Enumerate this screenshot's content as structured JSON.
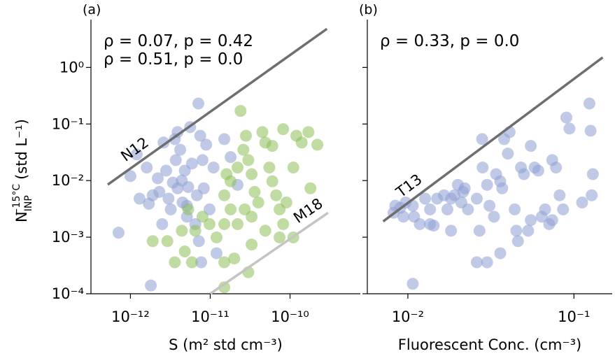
{
  "chart_data": [
    {
      "type": "scatter",
      "panel_label": "(a)",
      "xscale": "log",
      "yscale": "log",
      "x_label": "S (m² std cm⁻³)",
      "y_label": {
        "text": "N",
        "sub": "INP",
        "sup": "−15°C",
        "unit": "(std L⁻¹)"
      },
      "xlim": [
        3.2e-13,
        7.6e-10
      ],
      "ylim": [
        0.0001,
        7
      ],
      "xticks": [
        {
          "value": 1e-12,
          "label": "10⁻¹²"
        },
        {
          "value": 1e-11,
          "label": "10⁻¹¹"
        },
        {
          "value": 1e-10,
          "label": "10⁻¹⁰"
        }
      ],
      "yticks": [
        {
          "value": 0.0001,
          "label": "10⁻⁴"
        },
        {
          "value": 0.001,
          "label": "10⁻³"
        },
        {
          "value": 0.01,
          "label": "10⁻²"
        },
        {
          "value": 0.1,
          "label": "10⁻¹"
        },
        {
          "value": 1,
          "label": "10⁰"
        }
      ],
      "annotations": [
        {
          "text": "ρ = 0.07, p = 0.42",
          "color": "#8c9fd4"
        },
        {
          "text": "ρ = 0.51, p = 0.0",
          "color": "#8dbf55"
        }
      ],
      "lines": [
        {
          "label": "N12",
          "color": "#6e6e6e",
          "x": [
            5.2e-13,
            2.9e-10
          ],
          "y": [
            0.0085,
            4.8
          ]
        },
        {
          "label": "M18",
          "color": "#c4c4c4",
          "x": [
            1e-11,
            3e-10
          ],
          "y": [
            0.0001,
            0.0027
          ]
        }
      ],
      "series": [
        {
          "color": "#8c9fd4",
          "x": [
            7.1e-13,
            1e-12,
            1.2e-12,
            1.6e-12,
            1.7e-12,
            1.8e-12,
            2.2e-12,
            2.5e-12,
            2.8e-12,
            3e-12,
            3.4e-12,
            3.7e-12,
            3.9e-12,
            4.2e-12,
            4.4e-12,
            4.5e-12,
            4.8e-12,
            5.1e-12,
            5.3e-12,
            5.6e-12,
            5.9e-12,
            6.5e-12,
            6.8e-12,
            7.1e-12,
            7.2e-12,
            7.5e-12,
            8e-12,
            8.3e-12,
            8.9e-12,
            9.8e-12,
            1.1e-11,
            1.2e-11,
            1.5e-11,
            1.8e-11,
            2.2e-11,
            7.7e-12,
            1.3e-12,
            1.9e-12,
            2.6e-12,
            3.6e-12,
            3.2e-12,
            2.3e-12,
            5.1e-12,
            3.9e-12
          ],
          "y": [
            0.0012,
            0.012,
            0.029,
            0.017,
            0.0039,
            0.00014,
            0.011,
            0.0017,
            0.015,
            0.0048,
            0.0092,
            0.023,
            0.072,
            0.035,
            0.01,
            0.0041,
            0.015,
            0.0023,
            0.0077,
            0.088,
            0.02,
            0.0017,
            0.0055,
            0.23,
            0.00085,
            0.062,
            0.023,
            0.0073,
            0.043,
            0.0031,
            0.017,
            0.00052,
            0.054,
            0.026,
            0.0084,
            0.00036,
            0.0048,
            0.0055,
            0.047,
            0.054,
            0.0031,
            0.0063,
            0.0036,
            0.0073
          ]
        },
        {
          "color": "#8dbf55",
          "x": [
            2.4e-11,
            2.8e-11,
            2.6e-11,
            3e-11,
            3.3e-11,
            3.6e-11,
            4e-11,
            4.5e-11,
            4.9e-11,
            5.5e-11,
            6e-11,
            6.7e-11,
            7.4e-11,
            8.2e-11,
            9e-11,
            1.1e-10,
            1.2e-10,
            1.4e-10,
            1.7e-10,
            1.8e-10,
            2.2e-10,
            1.1e-10,
            7.4e-11,
            4.9e-11,
            3.3e-11,
            2.7e-11,
            2.2e-11,
            1.8e-11,
            1.5e-11,
            1.2e-11,
            9.8e-12,
            8e-12,
            6.5e-12,
            5.3e-12,
            4.4e-12,
            3.6e-12,
            2.9e-12,
            1.9e-12,
            4.8e-12,
            5.9e-12,
            1.5e-11,
            2e-11,
            3e-11,
            3.3e-11,
            1.8e-11,
            2.2e-11,
            1.6e-11,
            1.5e-11,
            6e-11,
            8.2e-11,
            1.5e-11
          ],
          "y": [
            0.17,
            0.062,
            0.035,
            0.023,
            0.013,
            0.0063,
            0.0041,
            0.072,
            0.047,
            0.017,
            0.0097,
            0.0055,
            0.0031,
            0.0017,
            0.0041,
            0.017,
            0.062,
            0.047,
            0.072,
            0.0073,
            0.043,
            0.00099,
            0.00099,
            0.0013,
            0.0023,
            0.0031,
            0.0017,
            0.0031,
            0.0055,
            0.00099,
            0.0017,
            0.0023,
            0.0013,
            0.0031,
            0.0013,
            0.00036,
            0.00085,
            0.00085,
            0.00056,
            0.00036,
            0.00036,
            0.00042,
            0.00024,
            0.00074,
            0.0097,
            0.017,
            0.013,
            0.0017,
            0.041,
            0.081,
            0.00013
          ]
        }
      ]
    },
    {
      "type": "scatter",
      "panel_label": "(b)",
      "xscale": "log",
      "yscale": "log",
      "sharey": true,
      "x_label": "Fluorescent Conc. (cm⁻³)",
      "xlim": [
        0.0057,
        0.17
      ],
      "ylim": [
        0.0001,
        7
      ],
      "xticks": [
        {
          "value": 0.01,
          "label": "10⁻²"
        },
        {
          "value": 0.1,
          "label": "10⁻¹"
        }
      ],
      "yticks": [
        0.0001,
        0.001,
        0.01,
        0.1,
        1
      ],
      "annotations": [
        {
          "text": "ρ = 0.33, p = 0.0",
          "color": "#8c9fd4"
        }
      ],
      "lines": [
        {
          "label": "T13",
          "color": "#6e6e6e",
          "x": [
            0.0071,
            0.149
          ],
          "y": [
            0.0019,
            1.5
          ]
        }
      ],
      "series": [
        {
          "color": "#8c9fd4",
          "x": [
            0.0082,
            0.0084,
            0.009,
            0.0097,
            0.0107,
            0.0109,
            0.0118,
            0.0127,
            0.0136,
            0.0143,
            0.015,
            0.0165,
            0.0173,
            0.0182,
            0.0191,
            0.02,
            0.021,
            0.0215,
            0.022,
            0.023,
            0.026,
            0.027,
            0.028,
            0.0282,
            0.03,
            0.031,
            0.033,
            0.034,
            0.036,
            0.037,
            0.038,
            0.04,
            0.041,
            0.044,
            0.045,
            0.046,
            0.048,
            0.05,
            0.053,
            0.055,
            0.058,
            0.061,
            0.064,
            0.067,
            0.071,
            0.074,
            0.078,
            0.082,
            0.086,
            0.09,
            0.094,
            0.112,
            0.124,
            0.126,
            0.13,
            0.128,
            0.0107,
            0.03,
            0.036,
            0.026,
            0.0136,
            0.0094,
            0.0182,
            0.055,
            0.074
          ],
          "y": [
            0.0027,
            0.0036,
            0.0033,
            0.0041,
            0.0036,
            0.0023,
            0.0017,
            0.0048,
            0.0031,
            0.0016,
            0.0048,
            0.0055,
            0.0031,
            0.0048,
            0.0055,
            0.0084,
            0.0041,
            0.0063,
            0.0073,
            0.0031,
            0.0048,
            0.0013,
            0.054,
            0.017,
            0.0084,
            0.0036,
            0.0023,
            0.013,
            0.0097,
            0.0073,
            0.054,
            0.03,
            0.072,
            0.0031,
            0.0013,
            0.00085,
            0.017,
            0.013,
            0.0013,
            0.041,
            0.017,
            0.015,
            0.0023,
            0.0031,
            0.0017,
            0.023,
            0.017,
            0.0055,
            0.0031,
            0.13,
            0.083,
            0.0041,
            0.23,
            0.076,
            0.013,
            0.0055,
            0.00015,
            0.00036,
            0.00052,
            0.00036,
            0.0017,
            0.0023,
            0.0013,
            0.002,
            0.002
          ]
        }
      ]
    }
  ]
}
